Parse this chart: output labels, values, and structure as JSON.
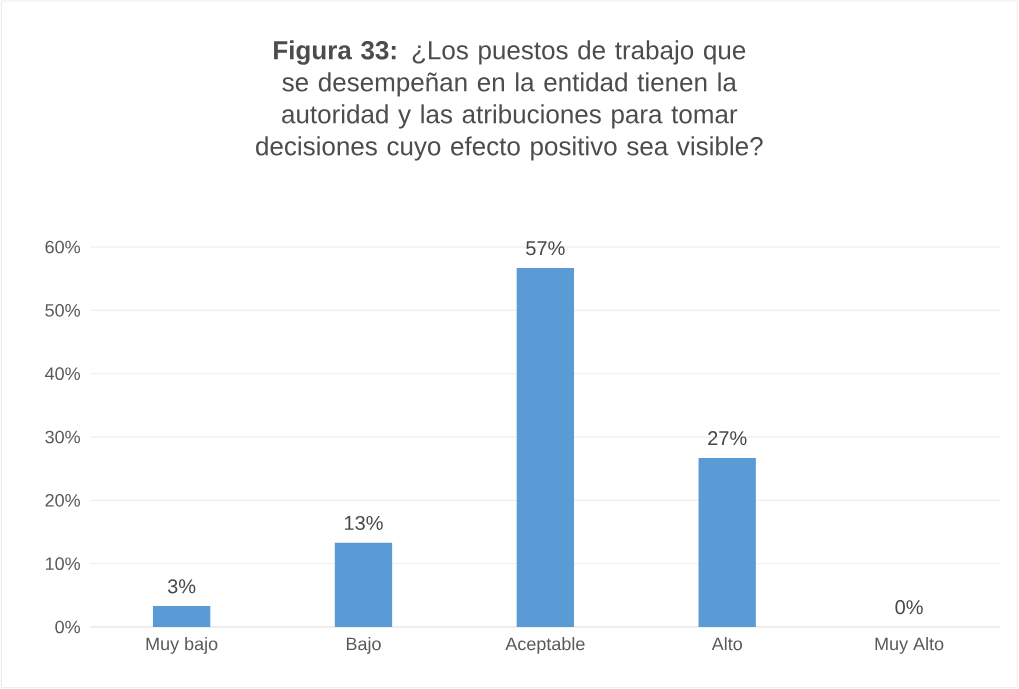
{
  "chart_data": {
    "type": "bar",
    "title": "**Figura 33:** ¿Los puestos de trabajo que se desempeñan en la entidad tienen la autoridad y las atribuciones para tomar decisiones cuyo efecto positivo sea visible?",
    "categories": [
      "Muy bajo",
      "Bajo",
      "Aceptable",
      "Alto",
      "Muy Alto"
    ],
    "values": [
      3.3,
      13.3,
      56.7,
      26.7,
      0
    ],
    "value_labels": [
      "3%",
      "13%",
      "57%",
      "27%",
      "0%"
    ],
    "color": "#5b9bd5",
    "ylim": [
      0,
      60
    ],
    "yticks": [
      {
        "value": 0,
        "label": "0%"
      },
      {
        "value": 10,
        "label": "10%"
      },
      {
        "value": 20,
        "label": "20%"
      },
      {
        "value": 30,
        "label": "30%"
      },
      {
        "value": 40,
        "label": "40%"
      },
      {
        "value": 50,
        "label": "50%"
      },
      {
        "value": 60,
        "label": "60%"
      }
    ],
    "grid": "y"
  }
}
